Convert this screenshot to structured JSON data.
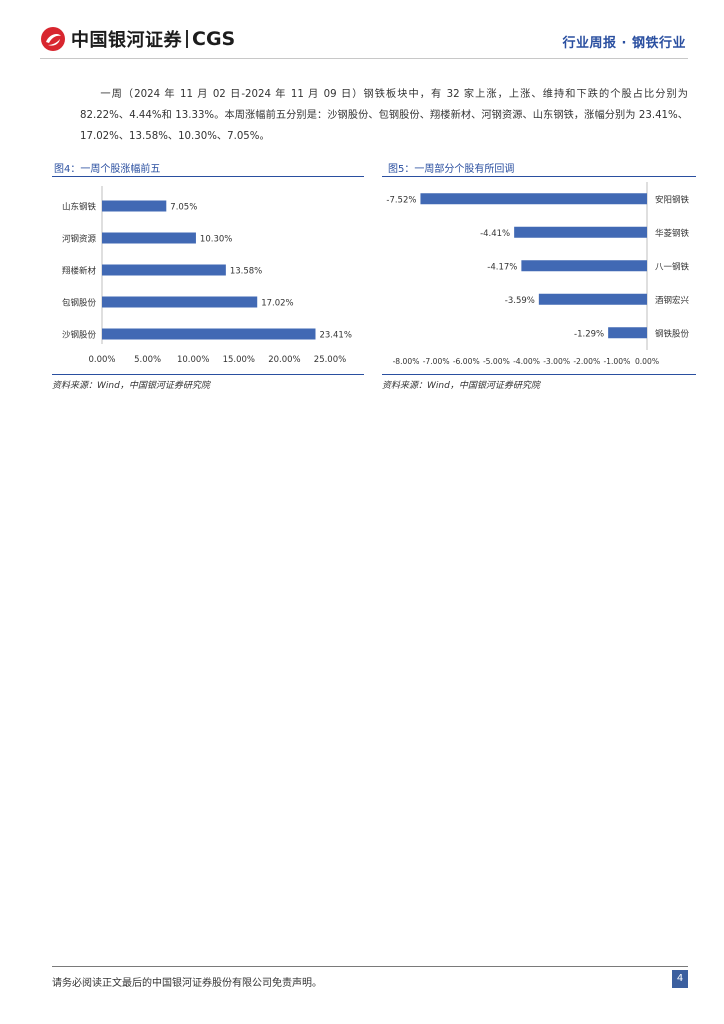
{
  "header": {
    "logo_cn": "中国银河证券",
    "logo_en": "CGS",
    "right_text": "行业周报 · 钢铁行业"
  },
  "paragraph": "一周（2024 年 11 月 02 日-2024 年 11 月 09 日）钢铁板块中，有 32 家上涨，上涨、维持和下跌的个股占比分别为 82.22%、4.44%和 13.33%。本周涨幅前五分别是：沙钢股份、包钢股份、翔楼新材、河钢资源、山东钢铁，涨幅分别为 23.41%、17.02%、13.58%、10.30%、7.05%。",
  "figures": {
    "left": {
      "title": "图4：一周个股涨幅前五",
      "source": "资料来源：Wind，中国银河证券研究院"
    },
    "right": {
      "title": "图5：一周部分个股有所回调",
      "source": "资料来源：Wind，中国银河证券研究院"
    }
  },
  "chart_data": [
    {
      "type": "bar",
      "orientation": "horizontal",
      "categories": [
        "山东钢铁",
        "河钢资源",
        "翔楼新材",
        "包钢股份",
        "沙钢股份"
      ],
      "values": [
        7.05,
        10.3,
        13.58,
        17.02,
        23.41
      ],
      "value_labels": [
        "7.05%",
        "10.30%",
        "13.58%",
        "17.02%",
        "23.41%"
      ],
      "xlim": [
        0,
        25
      ],
      "ticks": [
        "0.00%",
        "5.00%",
        "10.00%",
        "15.00%",
        "20.00%",
        "25.00%"
      ],
      "color": "#4169b4"
    },
    {
      "type": "bar",
      "orientation": "horizontal",
      "categories": [
        "安阳钢铁",
        "华菱钢铁",
        "八一钢铁",
        "酒钢宏兴",
        "钢铁股份"
      ],
      "values": [
        -7.52,
        -4.41,
        -4.17,
        -3.59,
        -1.29
      ],
      "value_labels": [
        "-7.52%",
        "-4.41%",
        "-4.17%",
        "-3.59%",
        "-1.29%"
      ],
      "xlim": [
        -8,
        0
      ],
      "ticks": [
        "-8.00%",
        "-7.00%",
        "-6.00%",
        "-5.00%",
        "-4.00%",
        "-3.00%",
        "-2.00%",
        "-1.00%",
        "0.00%"
      ],
      "color": "#4169b4"
    }
  ],
  "footer": {
    "disclaimer": "请务必阅读正文最后的中国银河证券股份有限公司免责声明。",
    "page_number": "4"
  }
}
